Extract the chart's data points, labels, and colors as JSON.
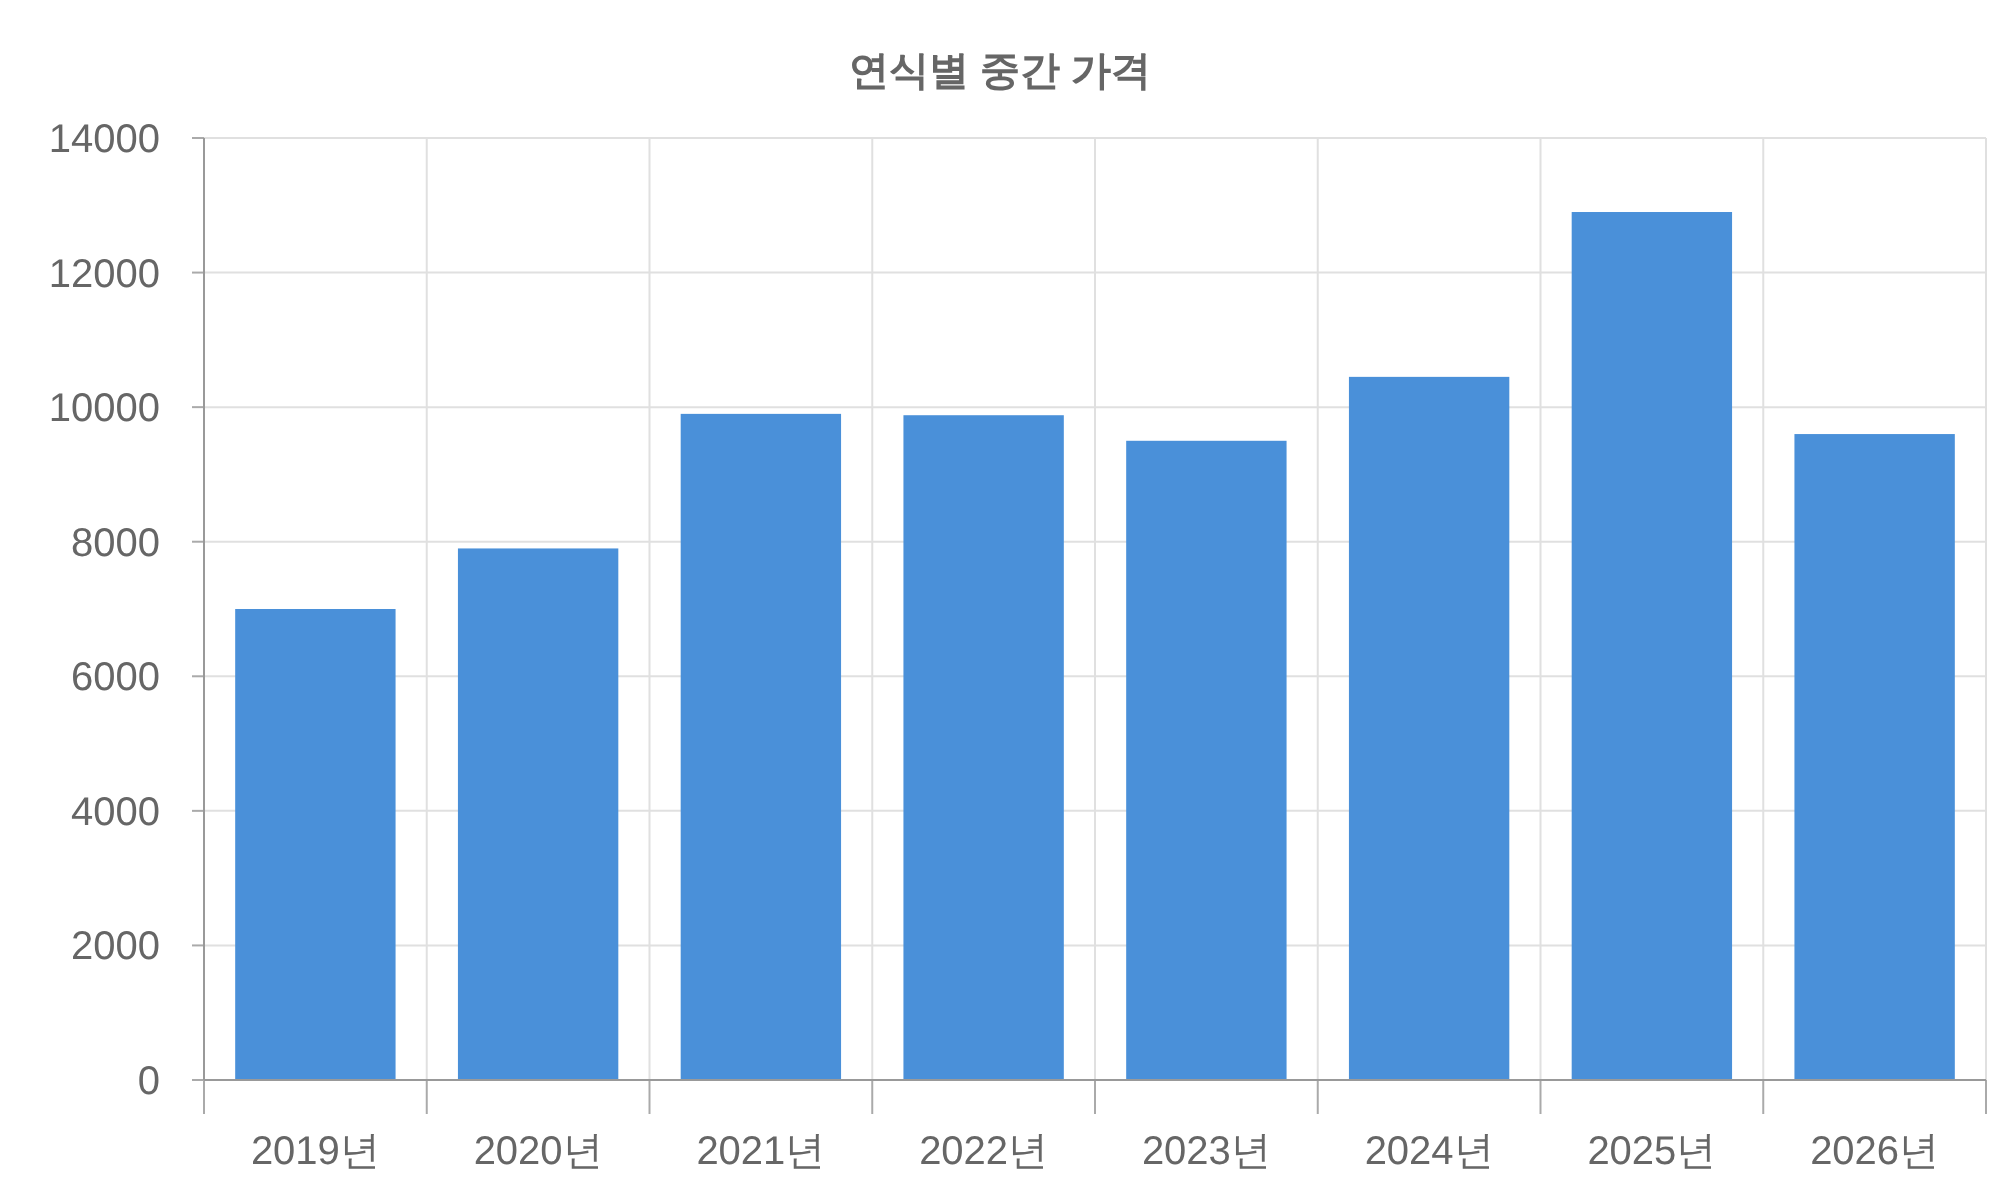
{
  "chart_data": {
    "type": "bar",
    "title": "연식별 중간 가격",
    "categories": [
      "2019년",
      "2020년",
      "2021년",
      "2022년",
      "2023년",
      "2024년",
      "2025년",
      "2026년"
    ],
    "values": [
      7000,
      7900,
      9900,
      9880,
      9500,
      10450,
      12900,
      9600
    ],
    "color": "#4a90d9",
    "ylim": [
      0,
      14000
    ],
    "yticks": [
      0,
      2000,
      4000,
      6000,
      8000,
      10000,
      12000,
      14000
    ],
    "grid": true
  }
}
